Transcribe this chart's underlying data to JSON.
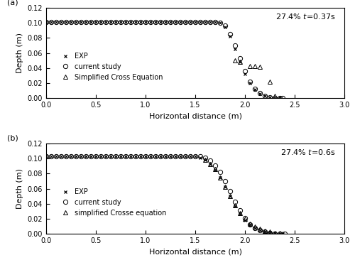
{
  "title_a": "27.4% t=0.37s",
  "title_b": "27.4% t=0.6s",
  "label_a": "(a)",
  "label_b": "(b)",
  "xlabel": "Horizontal distance (m)",
  "ylabel": "Depth (m)",
  "xlim": [
    0,
    3
  ],
  "ylim_a": [
    0,
    0.12
  ],
  "ylim_b": [
    0,
    0.12
  ],
  "yticks": [
    0,
    0.02,
    0.04,
    0.06,
    0.08,
    0.1,
    0.12
  ],
  "xticks": [
    0,
    0.5,
    1.0,
    1.5,
    2.0,
    2.5,
    3.0
  ],
  "exp_a_x": [
    0.0,
    0.05,
    0.1,
    0.15,
    0.2,
    0.25,
    0.3,
    0.35,
    0.4,
    0.45,
    0.5,
    0.55,
    0.6,
    0.65,
    0.7,
    0.75,
    0.8,
    0.85,
    0.9,
    0.95,
    1.0,
    1.05,
    1.1,
    1.15,
    1.2,
    1.25,
    1.3,
    1.35,
    1.4,
    1.45,
    1.5,
    1.55,
    1.6,
    1.65,
    1.7,
    1.75,
    1.8,
    1.85,
    1.9,
    1.95,
    2.0,
    2.05,
    2.1,
    2.15,
    2.2,
    2.25,
    2.3,
    2.35
  ],
  "exp_a_y": [
    0.101,
    0.101,
    0.101,
    0.101,
    0.101,
    0.101,
    0.101,
    0.101,
    0.101,
    0.101,
    0.101,
    0.101,
    0.101,
    0.101,
    0.101,
    0.101,
    0.101,
    0.101,
    0.101,
    0.101,
    0.101,
    0.101,
    0.101,
    0.101,
    0.101,
    0.101,
    0.101,
    0.101,
    0.101,
    0.101,
    0.101,
    0.101,
    0.101,
    0.101,
    0.101,
    0.1,
    0.095,
    0.082,
    0.065,
    0.048,
    0.032,
    0.02,
    0.012,
    0.006,
    0.003,
    0.001,
    0.0,
    0.0
  ],
  "sim_a_x": [
    0.0,
    0.05,
    0.1,
    0.15,
    0.2,
    0.25,
    0.3,
    0.35,
    0.4,
    0.45,
    0.5,
    0.55,
    0.6,
    0.65,
    0.7,
    0.75,
    0.8,
    0.85,
    0.9,
    0.95,
    1.0,
    1.05,
    1.1,
    1.15,
    1.2,
    1.25,
    1.3,
    1.35,
    1.4,
    1.45,
    1.5,
    1.55,
    1.6,
    1.65,
    1.7,
    1.75,
    1.8,
    1.85,
    1.9,
    1.95,
    2.0,
    2.05,
    2.1,
    2.15,
    2.2,
    2.25,
    2.3,
    2.35,
    2.38
  ],
  "sim_a_y": [
    0.101,
    0.101,
    0.101,
    0.101,
    0.101,
    0.101,
    0.101,
    0.101,
    0.101,
    0.101,
    0.101,
    0.101,
    0.101,
    0.101,
    0.101,
    0.101,
    0.101,
    0.101,
    0.101,
    0.101,
    0.101,
    0.101,
    0.101,
    0.101,
    0.101,
    0.101,
    0.101,
    0.101,
    0.101,
    0.101,
    0.101,
    0.101,
    0.101,
    0.101,
    0.101,
    0.1,
    0.096,
    0.085,
    0.07,
    0.053,
    0.036,
    0.022,
    0.013,
    0.007,
    0.003,
    0.001,
    0.0,
    0.0,
    0.0
  ],
  "tri_a_x": [
    1.9,
    1.95,
    2.05,
    2.1,
    2.15,
    2.25,
    2.3,
    2.35
  ],
  "tri_a_y": [
    0.05,
    0.048,
    0.043,
    0.043,
    0.042,
    0.022,
    0.003,
    0.0
  ],
  "exp_b_x": [
    0.0,
    0.05,
    0.1,
    0.15,
    0.2,
    0.25,
    0.3,
    0.35,
    0.4,
    0.45,
    0.5,
    0.55,
    0.6,
    0.65,
    0.7,
    0.75,
    0.8,
    0.85,
    0.9,
    0.95,
    1.0,
    1.05,
    1.1,
    1.15,
    1.2,
    1.25,
    1.3,
    1.35,
    1.4,
    1.45,
    1.5,
    1.55,
    1.6,
    1.65,
    1.7,
    1.75,
    1.8,
    1.85,
    1.9,
    1.95,
    2.0,
    2.05,
    2.1,
    2.15,
    2.2,
    2.25,
    2.3,
    2.35,
    2.38
  ],
  "exp_b_y": [
    0.103,
    0.103,
    0.103,
    0.103,
    0.103,
    0.103,
    0.103,
    0.103,
    0.103,
    0.103,
    0.103,
    0.103,
    0.103,
    0.103,
    0.103,
    0.103,
    0.103,
    0.103,
    0.103,
    0.103,
    0.103,
    0.103,
    0.103,
    0.103,
    0.103,
    0.103,
    0.103,
    0.103,
    0.103,
    0.103,
    0.103,
    0.101,
    0.098,
    0.093,
    0.085,
    0.075,
    0.063,
    0.05,
    0.037,
    0.027,
    0.018,
    0.013,
    0.008,
    0.005,
    0.003,
    0.002,
    0.001,
    0.0,
    0.0
  ],
  "sim_b_x": [
    0.0,
    0.05,
    0.1,
    0.15,
    0.2,
    0.25,
    0.3,
    0.35,
    0.4,
    0.45,
    0.5,
    0.55,
    0.6,
    0.65,
    0.7,
    0.75,
    0.8,
    0.85,
    0.9,
    0.95,
    1.0,
    1.05,
    1.1,
    1.15,
    1.2,
    1.25,
    1.3,
    1.35,
    1.4,
    1.45,
    1.5,
    1.55,
    1.6,
    1.65,
    1.7,
    1.75,
    1.8,
    1.85,
    1.9,
    1.95,
    2.0,
    2.05,
    2.1,
    2.15,
    2.2,
    2.25,
    2.3,
    2.35,
    2.4
  ],
  "sim_b_y": [
    0.103,
    0.103,
    0.103,
    0.103,
    0.103,
    0.103,
    0.103,
    0.103,
    0.103,
    0.103,
    0.103,
    0.103,
    0.103,
    0.103,
    0.103,
    0.103,
    0.103,
    0.103,
    0.103,
    0.103,
    0.103,
    0.103,
    0.103,
    0.103,
    0.103,
    0.103,
    0.103,
    0.103,
    0.103,
    0.103,
    0.103,
    0.103,
    0.101,
    0.097,
    0.091,
    0.082,
    0.07,
    0.057,
    0.043,
    0.031,
    0.021,
    0.013,
    0.008,
    0.005,
    0.003,
    0.001,
    0.0,
    0.0,
    0.0
  ],
  "tri_b_x": [
    1.6,
    1.65,
    1.7,
    1.75,
    1.8,
    1.85,
    1.9,
    1.95,
    2.0,
    2.05,
    2.1,
    2.15,
    2.2,
    2.25,
    2.3,
    2.35,
    2.38
  ],
  "tri_b_y": [
    0.098,
    0.093,
    0.086,
    0.075,
    0.063,
    0.05,
    0.038,
    0.028,
    0.02,
    0.014,
    0.01,
    0.007,
    0.004,
    0.003,
    0.001,
    0.001,
    0.0
  ],
  "legend_exp": "EXP",
  "legend_sim": "current study",
  "legend_tri_a": "Simplified Cross Equation",
  "legend_tri_b": "simplified Crosse equation",
  "marker_exp": "x",
  "marker_sim": "o",
  "marker_tri": "^",
  "marker_color": "black",
  "markersize_exp": 3.5,
  "markersize_sim": 4.5,
  "markersize_tri": 4.0,
  "fontsize_legend": 7,
  "fontsize_label": 8,
  "fontsize_tick": 7,
  "fontsize_annot": 8
}
